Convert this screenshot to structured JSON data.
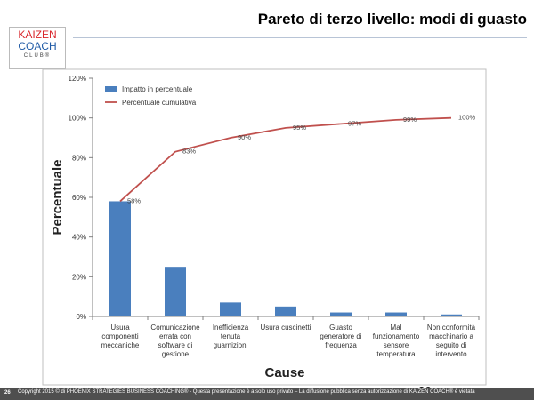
{
  "logo": {
    "line1": "KAIZEN",
    "line2": "COACH",
    "line3": "CLUB®"
  },
  "title": "Pareto di terzo livello: modi di guasto",
  "footer": {
    "number": "26",
    "text": "Copyright 2015 © di PHOENIX STRATEGIES BUSINESS COACHING® - Questa presentazione è a solo uso privato – La diffusione pubblica senza autorizzazione di KAIZEN COACH® è vietata"
  },
  "page_number": "26",
  "colors": {
    "bar": "#4a7fbe",
    "line": "#c0504d",
    "footer_bg": "#4f4f4f",
    "logo_red": "#d9262b",
    "logo_blue": "#1f5aa6"
  },
  "chart_data": {
    "type": "bar",
    "categories": [
      "Usura componenti meccaniche",
      "Comunicazione errata con software di gestione",
      "Inefficienza tenuta guarnizioni",
      "Usura cuscinetti",
      "Guasto generatore di frequenza",
      "Mal funzionamento sensore temperatura",
      "Non conformità macchinario a seguito di intervento"
    ],
    "category_lines": [
      [
        "Usura",
        "componenti",
        "meccaniche"
      ],
      [
        "Comunicazione",
        "errata con",
        "software di",
        "gestione"
      ],
      [
        "Inefficienza",
        "tenuta",
        "guarnizioni"
      ],
      [
        "Usura cuscinetti"
      ],
      [
        "Guasto",
        "generatore di",
        "frequenza"
      ],
      [
        "Mal",
        "funzionamento",
        "sensore",
        "temperatura"
      ],
      [
        "Non conformità",
        "macchinario a",
        "seguito di",
        "intervento"
      ]
    ],
    "series": [
      {
        "name": "Impatto in percentuale",
        "kind": "bar",
        "values": [
          58,
          25,
          7,
          5,
          2,
          2,
          1
        ]
      },
      {
        "name": "Percentuale cumulativa",
        "kind": "line",
        "values": [
          58,
          83,
          90,
          95,
          97,
          99,
          100
        ]
      }
    ],
    "line_labels": [
      "58%",
      "83%",
      "90%",
      "95%",
      "97%",
      "99%",
      "100%"
    ],
    "xlabel": "Cause",
    "ylabel": "Percentuale",
    "ylim": [
      0,
      120
    ],
    "yticks": [
      "0%",
      "20%",
      "40%",
      "60%",
      "80%",
      "100%",
      "120%"
    ],
    "grid": false,
    "legend_position": "top-left"
  }
}
